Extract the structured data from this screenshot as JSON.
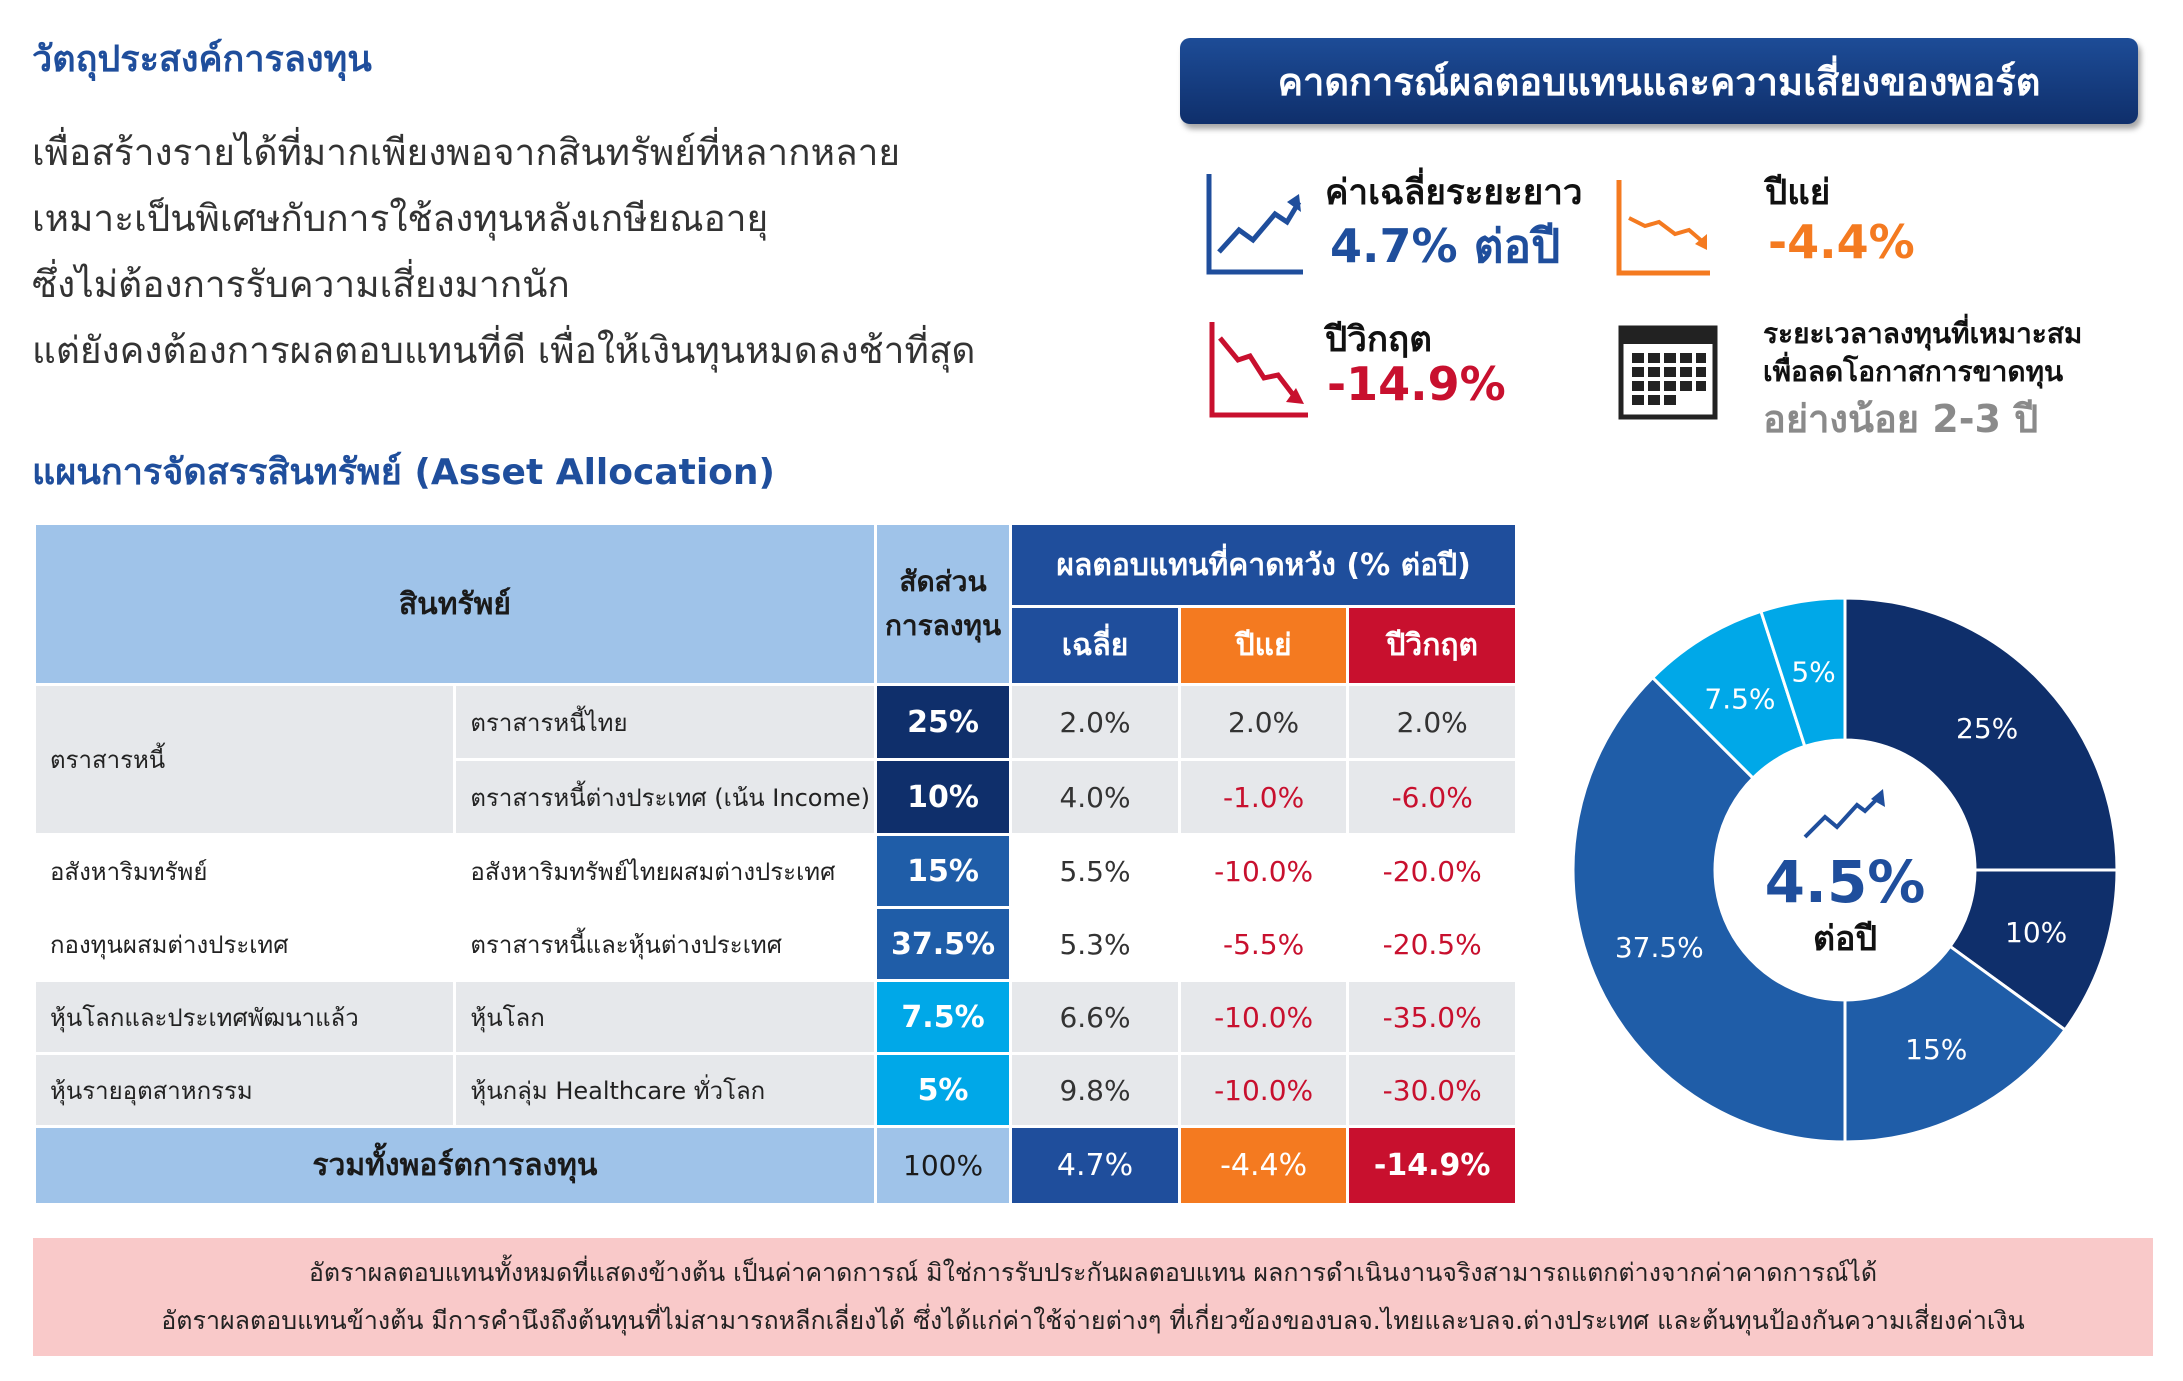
{
  "objective": {
    "title": "วัตถุประสงค์การลงทุน",
    "lines": [
      "เพื่อสร้างรายได้ที่มากเพียงพอจากสินทรัพย์ที่หลากหลาย",
      "เหมาะเป็นพิเศษกับการใช้ลงทุนหลังเกษียณอายุ",
      "ซึ่งไม่ต้องการรับความเสี่ยงมากนัก",
      "แต่ยังคงต้องการผลตอบแทนที่ดี เพื่อให้เงินทุนหมดลงช้าที่สุด"
    ]
  },
  "allocation": {
    "title": "แผนการจัดสรรสินทรัพย์ (Asset Allocation)",
    "headers": {
      "asset": "สินทรัพย์",
      "weight_l1": "สัดส่วน",
      "weight_l2": "การลงทุน",
      "expected": "ผลตอบแทนที่คาดหวัง (% ต่อปี)",
      "avg": "เฉลี่ย",
      "bad": "ปีแย่",
      "crisis": "ปีวิกฤต"
    },
    "categories": [
      "ตราสารหนี้",
      "อสังหาริมทรัพย์",
      "กองทุนผสมต่างประเทศ",
      "หุ้นโลกและประเทศพัฒนาแล้ว",
      "หุ้นรายอุตสาหกรรม"
    ],
    "rows": [
      {
        "asset": "ตราสารหนี้ไทย",
        "weight": "25%",
        "avg": "2.0%",
        "bad": "2.0%",
        "crisis": "2.0%",
        "color": "#0f2f6b"
      },
      {
        "asset": "ตราสารหนี้ต่างประเทศ (เน้น Income)",
        "weight": "10%",
        "avg": "4.0%",
        "bad": "-1.0%",
        "crisis": "-6.0%",
        "color": "#0f2f6b"
      },
      {
        "asset": "อสังหาริมทรัพย์ไทยผสมต่างประเทศ",
        "weight": "15%",
        "avg": "5.5%",
        "bad": "-10.0%",
        "crisis": "-20.0%",
        "color": "#1f5da8"
      },
      {
        "asset": "ตราสารหนี้และหุ้นต่างประเทศ",
        "weight": "37.5%",
        "avg": "5.3%",
        "bad": "-5.5%",
        "crisis": "-20.5%",
        "color": "#1f5da8"
      },
      {
        "asset": "หุ้นโลก",
        "weight": "7.5%",
        "avg": "6.6%",
        "bad": "-10.0%",
        "crisis": "-35.0%",
        "color": "#00a8e8"
      },
      {
        "asset": "หุ้นกลุ่ม Healthcare ทั่วโลก",
        "weight": "5%",
        "avg": "9.8%",
        "bad": "-10.0%",
        "crisis": "-30.0%",
        "color": "#00a8e8"
      }
    ],
    "total": {
      "label": "รวมทั้งพอร์ตการลงทุน",
      "weight": "100%",
      "avg": "4.7%",
      "bad": "-4.4%",
      "crisis": "-14.9%"
    }
  },
  "risk": {
    "banner": "คาดการณ์ผลตอบแทนและความเสี่ยงของพอร์ต",
    "long_term_label": "ค่าเฉลี่ยระยะยาว",
    "long_term_value": "4.7% ต่อปี",
    "bad_year_label": "ปีแย่",
    "bad_year_value": "-4.4%",
    "crisis_label": "ปีวิกฤต",
    "crisis_value": "-14.9%",
    "horizon_l1": "ระยะเวลาลงทุนที่เหมาะสม",
    "horizon_l2": "เพื่อลดโอกาสการขาดทุน",
    "horizon_value": "อย่างน้อย 2-3 ปี",
    "colors": {
      "blue": "#1f4e9c",
      "orange": "#f47a20",
      "red": "#c8102e"
    }
  },
  "chart_data": {
    "type": "pie",
    "categories": [
      "ตราสารหนี้ไทย",
      "ตราสารหนี้ต่างประเทศ (เน้น Income)",
      "อสังหาริมทรัพย์ไทยผสมต่างประเทศ",
      "ตราสารหนี้และหุ้นต่างประเทศ",
      "หุ้นโลก",
      "หุ้นกลุ่ม Healthcare ทั่วโลก"
    ],
    "values": [
      25,
      10,
      15,
      37.5,
      7.5,
      5
    ],
    "labels": [
      "25%",
      "10%",
      "15%",
      "37.5%",
      "7.5%",
      "5%"
    ],
    "colors": [
      "#0f2f6b",
      "#0f2f6b",
      "#1f5da8",
      "#1f5da8",
      "#00a8e8",
      "#00a8e8"
    ],
    "donut": true,
    "center_value": "4.5%",
    "center_label": "ต่อปี"
  },
  "disclaimer": {
    "line1": "อัตราผลตอบแทนทั้งหมดที่แสดงข้างต้น เป็นค่าคาดการณ์ มิใช่การรับประกันผลตอบแทน ผลการดำเนินงานจริงสามารถแตกต่างจากค่าคาดการณ์ได้",
    "line2": "อัตราผลตอบแทนข้างต้น มีการคำนึงถึงต้นทุนที่ไม่สามารถหลีกเลี่ยงได้ ซึ่งได้แก่ค่าใช้จ่ายต่างๆ ที่เกี่ยวข้องของบลจ.ไทยและบลจ.ต่างประเทศ และต้นทุนป้องกันความเสี่ยงค่าเงิน"
  }
}
